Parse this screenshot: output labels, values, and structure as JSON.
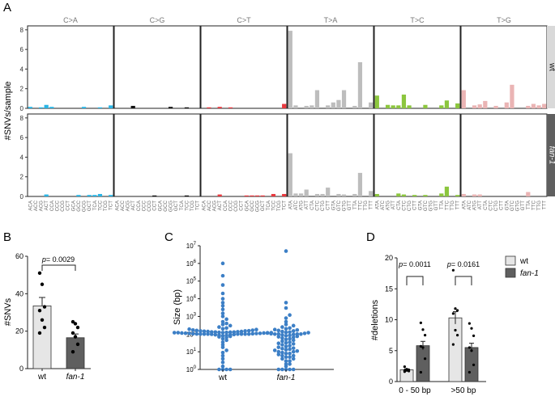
{
  "colors": {
    "C>A": "#29b5e6",
    "C>G": "#111111",
    "C>T": "#e8393f",
    "T>A": "#bdbdbd",
    "T>C": "#8cc63e",
    "T>G": "#eab4b4",
    "wt_bar": "#e6e6e6",
    "fan_bar": "#5f5f5f",
    "strip_wt": "#d9d9d9",
    "strip_fan": "#5f5f5f",
    "point_blue": "#3c7fc6"
  },
  "panels": [
    {
      "label": "A"
    },
    {
      "label": "B"
    },
    {
      "label": "C"
    },
    {
      "label": "D"
    }
  ],
  "chart_data": [
    {
      "id": "A",
      "type": "bar",
      "title": "",
      "ylabel": "#SNVs/sample",
      "ylim": [
        0,
        8.4
      ],
      "yticks": [
        "0",
        "2",
        "4",
        "6",
        "8"
      ],
      "mutation_types": [
        "C>A",
        "C>G",
        "C>T",
        "T>A",
        "T>C",
        "T>G"
      ],
      "rows": [
        "wt",
        "fan-1"
      ],
      "contexts": [
        [
          "ACA",
          "ACC",
          "ACG",
          "ACT",
          "CCA",
          "CCC",
          "CCG",
          "CCT",
          "GCA",
          "GCC",
          "GCG",
          "GCT",
          "TCA",
          "TCC",
          "TCG",
          "TCT"
        ],
        [
          "ACA",
          "ACC",
          "ACG",
          "ACT",
          "CCA",
          "CCC",
          "CCG",
          "CCT",
          "GCA",
          "GCC",
          "GCG",
          "GCT",
          "TCA",
          "TCC",
          "TCG",
          "TCT"
        ],
        [
          "ACA",
          "ACC",
          "ACG",
          "ACT",
          "CCA",
          "CCC",
          "CCG",
          "CCT",
          "GCA",
          "GCC",
          "GCG",
          "GCT",
          "TCA",
          "TCC",
          "TCG",
          "TCT"
        ],
        [
          "ATA",
          "ATC",
          "ATG",
          "ATT",
          "CTA",
          "CTC",
          "CTG",
          "CTT",
          "GTA",
          "GTC",
          "GTG",
          "GTT",
          "TTA",
          "TTC",
          "TTG",
          "TTT"
        ],
        [
          "ATA",
          "ATC",
          "ATG",
          "ATT",
          "CTA",
          "CTC",
          "CTG",
          "CTT",
          "GTA",
          "GTC",
          "GTG",
          "GTT",
          "TTA",
          "TTC",
          "TTG",
          "TTT"
        ],
        [
          "ATA",
          "ATC",
          "ATG",
          "ATT",
          "CTA",
          "CTC",
          "CTG",
          "CTT",
          "GTA",
          "GTC",
          "GTG",
          "GTT",
          "TTA",
          "TTC",
          "TTG",
          "TTT"
        ]
      ],
      "values": {
        "wt": [
          [
            0.15,
            0,
            0.1,
            0.35,
            0.15,
            0,
            0,
            0,
            0,
            0,
            0.15,
            0,
            0,
            0.1,
            0,
            0.3
          ],
          [
            0,
            0,
            0,
            0.25,
            0,
            0,
            0,
            0,
            0,
            0,
            0.15,
            0,
            0,
            0.1,
            0,
            0
          ],
          [
            0,
            0.1,
            0,
            0.15,
            0,
            0.1,
            0,
            0,
            0,
            0,
            0,
            0,
            0,
            0,
            0,
            0.45
          ],
          [
            7.9,
            0.3,
            0,
            0.25,
            0.3,
            1.85,
            0,
            0.3,
            0.6,
            0.85,
            1.85,
            0,
            0.25,
            4.7,
            0,
            0.6
          ],
          [
            1.3,
            0,
            0.35,
            0.3,
            0.3,
            1.4,
            0.3,
            0,
            0,
            0.35,
            0,
            0,
            0.3,
            0.8,
            0,
            0.5
          ],
          [
            1.85,
            0,
            0.3,
            0.4,
            0.75,
            0,
            0.25,
            0,
            0.6,
            2.4,
            0,
            0,
            0.25,
            0.45,
            0.3,
            0.45
          ]
        ],
        "fan-1": [
          [
            0,
            0,
            0,
            0.2,
            0,
            0,
            0,
            0,
            0,
            0.15,
            0,
            0.15,
            0.15,
            0.25,
            0,
            0.15
          ],
          [
            0,
            0,
            0,
            0,
            0,
            0,
            0,
            0.1,
            0,
            0,
            0,
            0,
            0,
            0.1,
            0,
            0
          ],
          [
            0,
            0,
            0,
            0.2,
            0,
            0,
            0,
            0,
            0.1,
            0.1,
            0.1,
            0.1,
            0,
            0.25,
            0,
            0.25
          ],
          [
            4.4,
            0.3,
            0.3,
            0.7,
            0,
            0.25,
            0.25,
            0.9,
            0,
            0.25,
            0.2,
            0,
            0.25,
            2.4,
            0,
            0.55
          ],
          [
            0.25,
            0,
            0,
            0,
            0.3,
            0.2,
            0,
            0.15,
            0,
            0.15,
            0,
            0,
            0.3,
            1.0,
            0,
            0.15
          ],
          [
            0.25,
            0,
            0.2,
            0.2,
            0,
            0,
            0,
            0,
            0,
            0,
            0,
            0,
            0.45,
            0,
            0,
            0
          ]
        ]
      }
    },
    {
      "id": "B",
      "type": "bar",
      "categories": [
        "wt",
        "fan-1"
      ],
      "values": [
        33.5,
        16.5
      ],
      "sem": [
        4.5,
        2.0
      ],
      "points": [
        [
          51,
          45,
          33,
          31,
          26,
          22,
          19
        ],
        [
          25,
          24,
          22,
          19,
          17,
          13,
          9
        ]
      ],
      "ylabel": "#SNVs",
      "ylim": [
        0,
        60
      ],
      "yticks": [
        "0",
        "20",
        "40",
        "60"
      ],
      "annotation": {
        "p_label": "p",
        "p_value": "= 0.0029"
      }
    },
    {
      "id": "C",
      "type": "scatter",
      "categories": [
        "wt",
        "fan-1"
      ],
      "ylabel": "Size (bp)",
      "yscale": "log",
      "ylim_exp": [
        0,
        7
      ],
      "ytick_base": "10",
      "ytick_exps": [
        "0",
        "1",
        "2",
        "3",
        "4",
        "5",
        "6",
        "7"
      ],
      "points_wt": [
        1,
        1,
        1,
        1,
        1.5,
        2.5,
        4,
        6,
        9,
        12,
        18,
        25,
        35,
        45,
        55,
        65,
        70,
        75,
        80,
        85,
        88,
        90,
        92,
        95,
        98,
        100,
        100,
        100,
        100,
        100,
        100,
        100,
        102,
        105,
        105,
        108,
        110,
        110,
        112,
        115,
        115,
        118,
        120,
        120,
        120,
        122,
        125,
        125,
        128,
        130,
        130,
        132,
        135,
        140,
        140,
        145,
        150,
        150,
        155,
        160,
        165,
        170,
        180,
        190,
        200,
        220,
        250,
        300,
        350,
        400,
        500,
        700,
        1000,
        1500,
        2500,
        4000,
        6000,
        10000,
        20000,
        60000,
        200000,
        1000000
      ],
      "points_fan": [
        1,
        1,
        1,
        1,
        1,
        1.5,
        2,
        2,
        3,
        3,
        4,
        4,
        5,
        5,
        6,
        6,
        7,
        8,
        8,
        9,
        10,
        10,
        11,
        12,
        13,
        14,
        15,
        16,
        18,
        20,
        22,
        25,
        28,
        30,
        32,
        35,
        40,
        45,
        50,
        55,
        60,
        65,
        70,
        75,
        80,
        85,
        90,
        95,
        100,
        100,
        100,
        100,
        105,
        110,
        115,
        120,
        125,
        130,
        140,
        150,
        160,
        170,
        180,
        200,
        220,
        250,
        300,
        350,
        500,
        800,
        1200,
        3000,
        6000,
        5000000
      ]
    },
    {
      "id": "D",
      "type": "bar",
      "categories": [
        "0 - 50 bp",
        ">50 bp"
      ],
      "series": [
        {
          "name": "wt",
          "values": [
            1.9,
            10.3
          ],
          "sem": [
            0.15,
            1.0
          ],
          "points": [
            [
              2.4,
              2.0,
              1.9,
              1.8,
              1.8,
              1.7,
              1.6
            ],
            [
              18.0,
              11.8,
              11.5,
              11.0,
              8.3,
              7.5,
              6.0
            ]
          ]
        },
        {
          "name": "fan-1",
          "values": [
            5.8,
            5.5
          ],
          "sem": [
            0.7,
            0.7
          ],
          "points": [
            [
              9.5,
              8.4,
              7.5,
              5.7,
              5.5,
              3.7,
              1.5
            ],
            [
              9.4,
              8.6,
              7.4,
              5.5,
              5.0,
              2.7,
              1.5
            ]
          ]
        }
      ],
      "ylabel": "#deletions",
      "ylim": [
        0,
        20
      ],
      "yticks": [
        "0",
        "5",
        "10",
        "15",
        "20"
      ],
      "annotations": [
        {
          "p_label": "p",
          "p_value": "= 0.0011"
        },
        {
          "p_label": "p",
          "p_value": "= 0.0161"
        }
      ],
      "legend": [
        "wt",
        "fan-1"
      ]
    }
  ]
}
